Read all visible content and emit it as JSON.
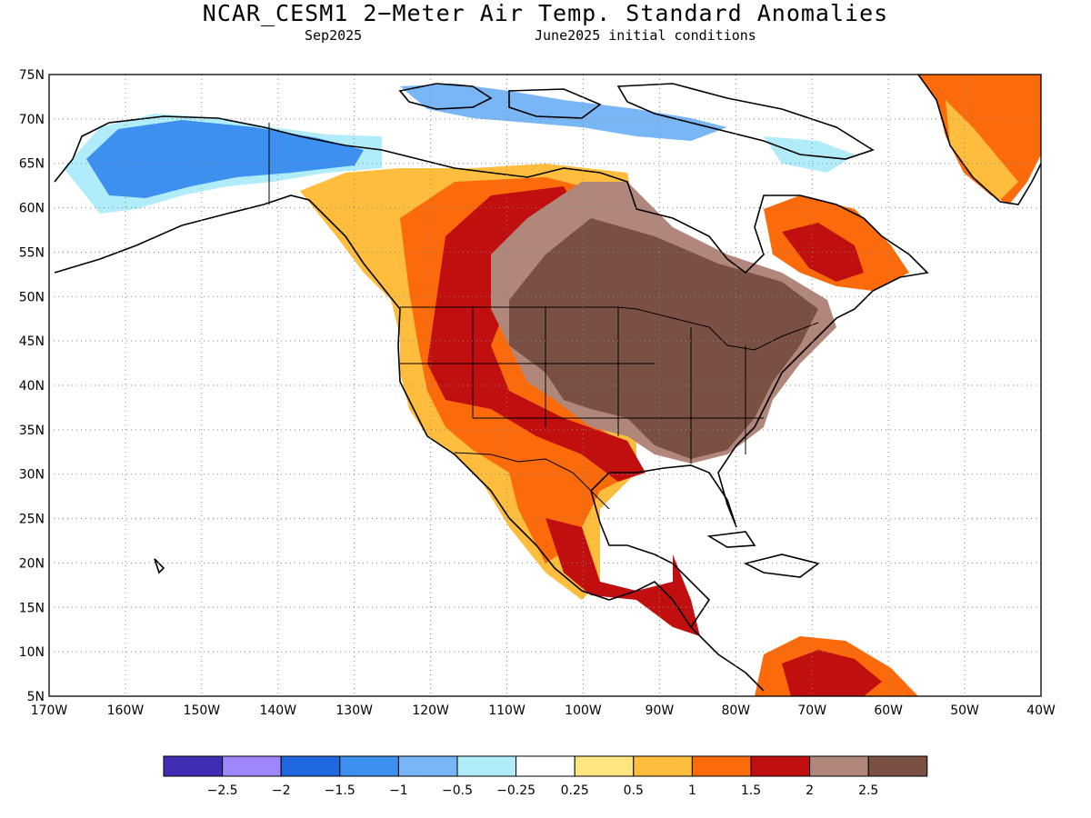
{
  "title": "NCAR_CESM1 2−Meter Air Temp. Standard Anomalies",
  "subtitle_left": "Sep2025",
  "subtitle_right": "June2025 initial conditions",
  "map": {
    "lon_range": [
      -170,
      -40
    ],
    "lat_range": [
      5,
      75
    ],
    "lat_labels": [
      "75N",
      "70N",
      "65N",
      "60N",
      "55N",
      "50N",
      "45N",
      "40N",
      "35N",
      "30N",
      "25N",
      "20N",
      "15N",
      "10N",
      "5N"
    ],
    "lon_labels": [
      "170W",
      "160W",
      "150W",
      "140W",
      "130W",
      "120W",
      "110W",
      "100W",
      "90W",
      "80W",
      "70W",
      "60W",
      "50W",
      "40W"
    ],
    "grid": "dotted"
  },
  "legend": {
    "colors": [
      "#3f2db3",
      "#9f86ff",
      "#2068e0",
      "#3d8ff0",
      "#78b6f5",
      "#b0ecfa",
      "#ffffff",
      "#ffe680",
      "#ffbd3d",
      "#fb6b0c",
      "#c10f0f",
      "#b0877a",
      "#7b5044"
    ],
    "labels": [
      "−2.5",
      "−2",
      "−1.5",
      "−1",
      "−0.5",
      "−0.25",
      "0.25",
      "0.5",
      "1",
      "1.5",
      "2",
      "2.5"
    ]
  }
}
